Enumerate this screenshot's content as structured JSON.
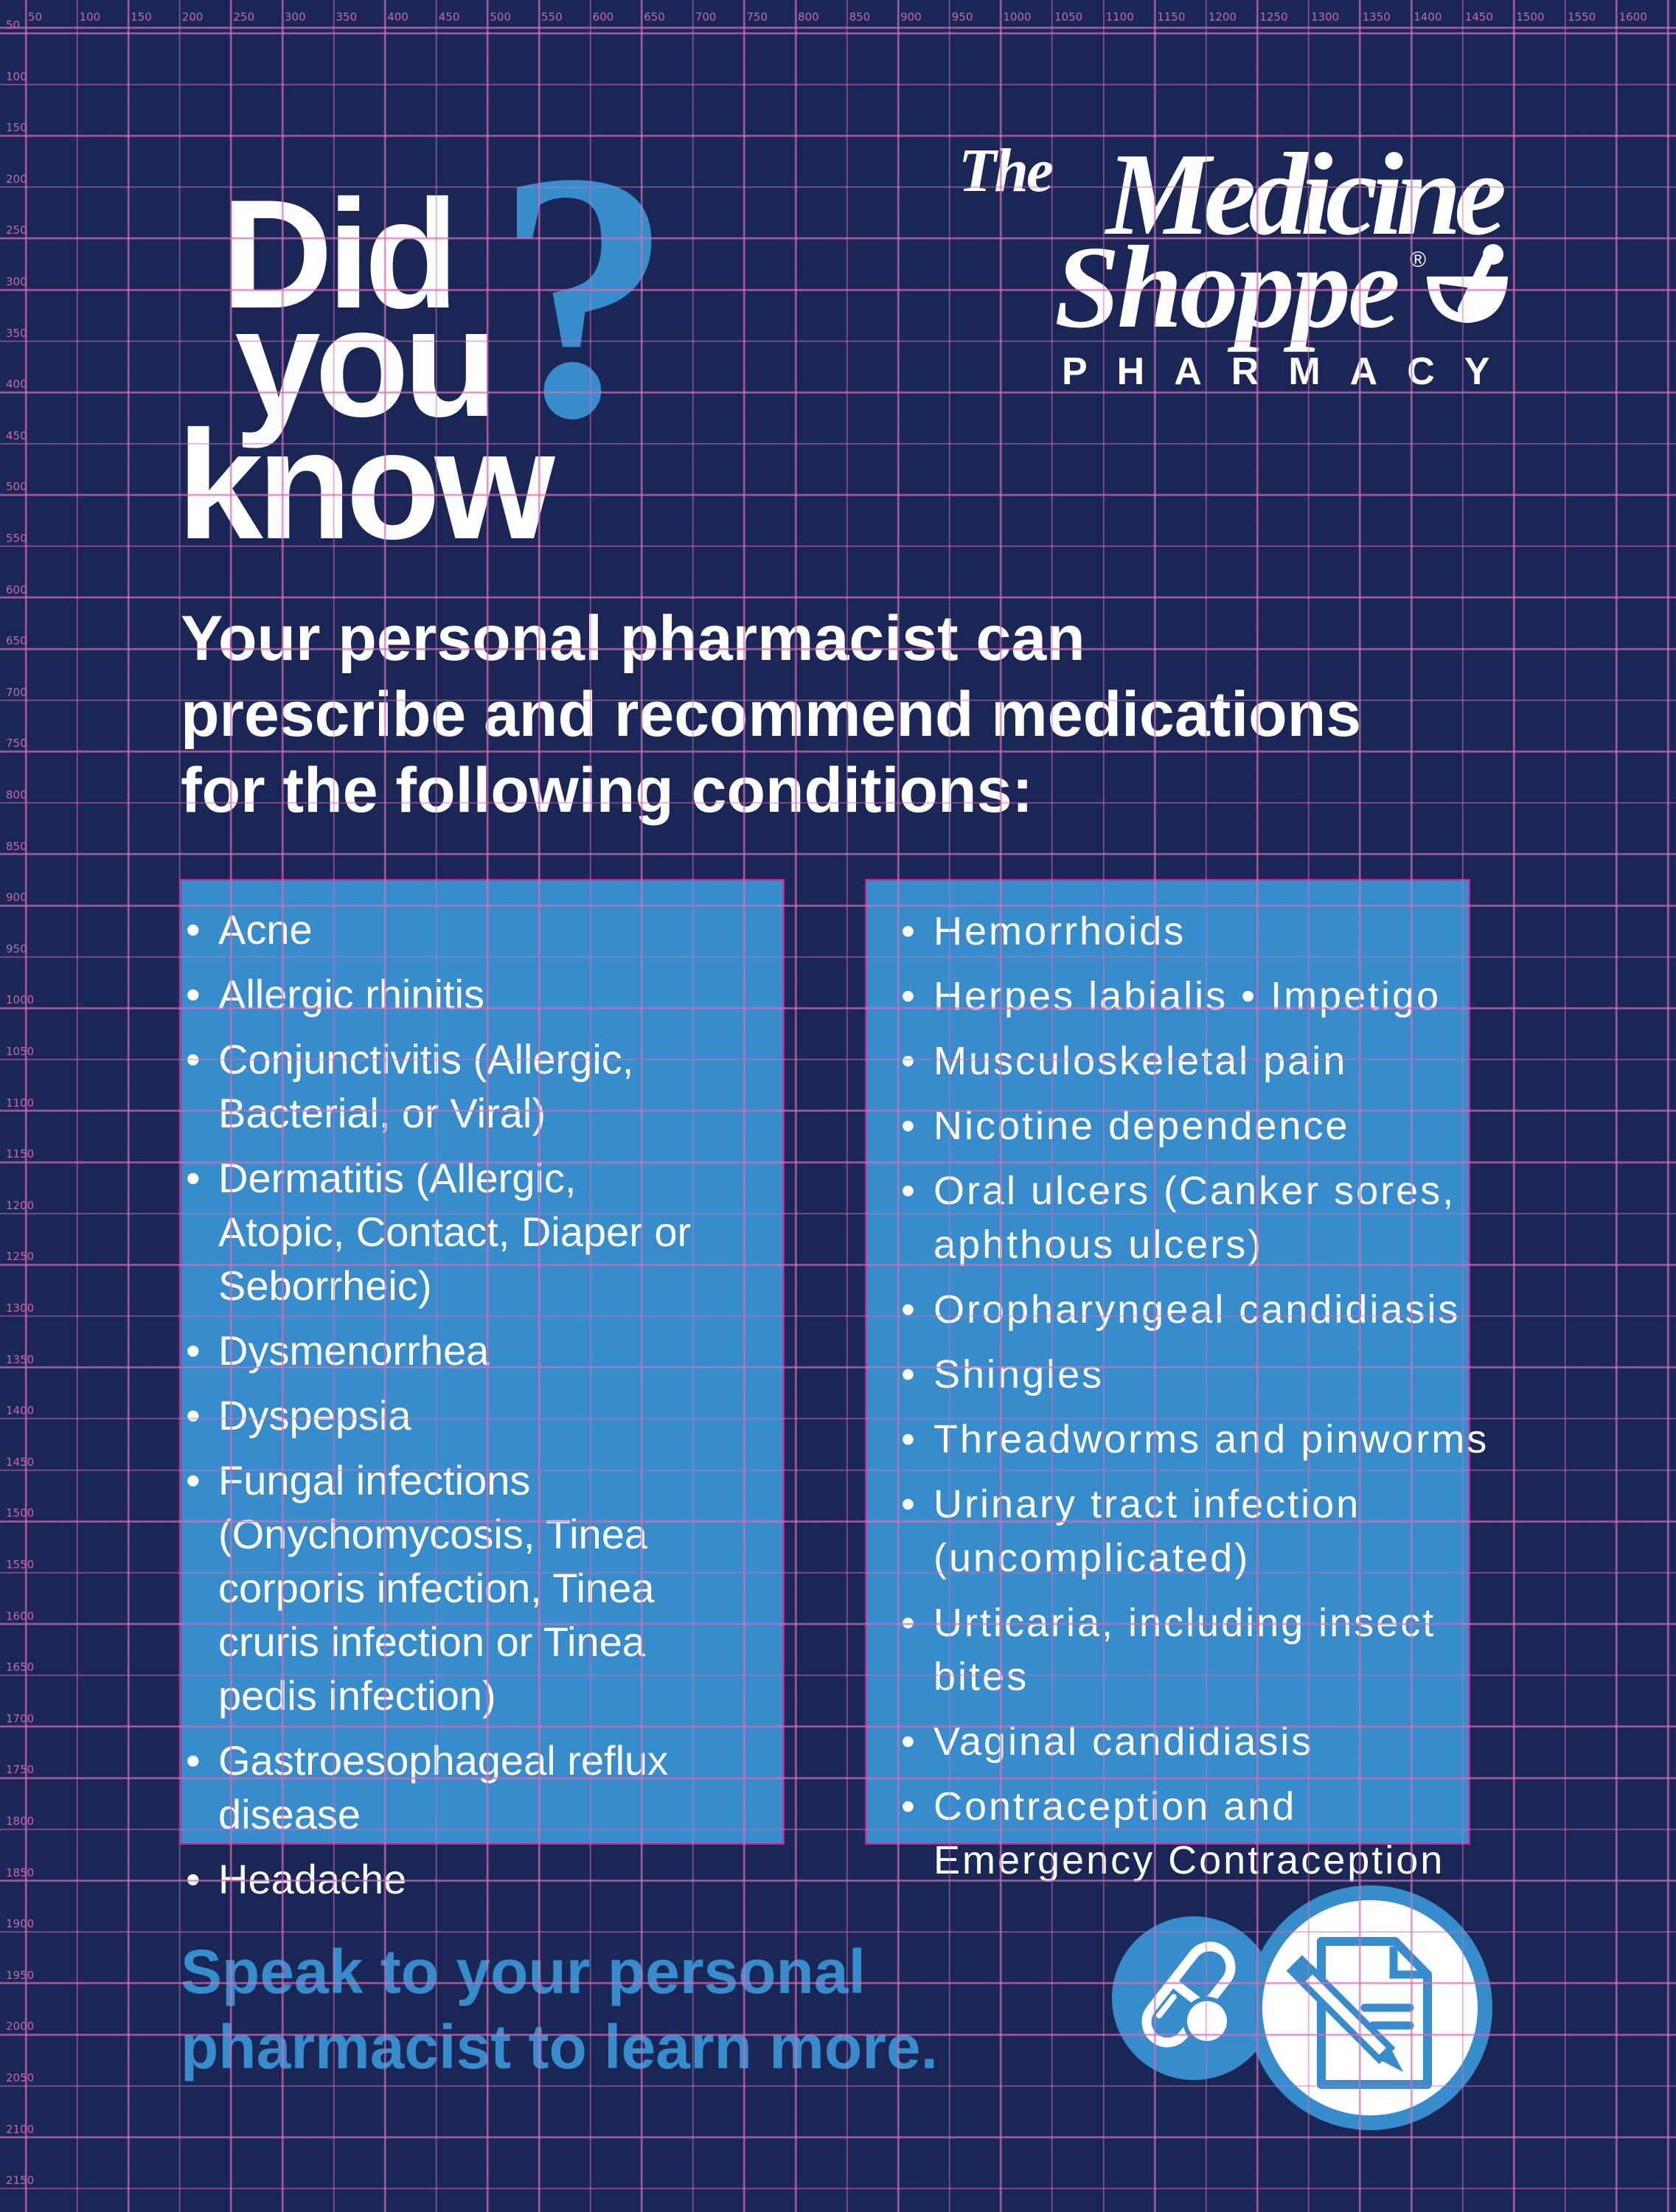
{
  "colors": {
    "background": "#1a2756",
    "accent_blue": "#378dcb",
    "box_border": "#e0128c",
    "grid": "#d66eb8",
    "text": "#ffffff"
  },
  "ruler": {
    "top": [
      "50",
      "100",
      "150",
      "200",
      "250",
      "300",
      "350",
      "400",
      "450",
      "500",
      "550",
      "600",
      "650",
      "700",
      "750",
      "800",
      "850",
      "900",
      "950",
      "1000",
      "1050",
      "1100",
      "1150",
      "1200",
      "1250",
      "1300",
      "1350",
      "1400",
      "1450",
      "1500",
      "1550",
      "1600"
    ],
    "left": [
      "50",
      "100",
      "150",
      "200",
      "250",
      "300",
      "350",
      "400",
      "450",
      "500",
      "550",
      "600",
      "650",
      "700",
      "750",
      "800",
      "850",
      "900",
      "950",
      "1000",
      "1050",
      "1100",
      "1150",
      "1200",
      "1250",
      "1300",
      "1350",
      "1400",
      "1450",
      "1500",
      "1550",
      "1600",
      "1650",
      "1700",
      "1750",
      "1800",
      "1850",
      "1900",
      "1950",
      "2000",
      "2050",
      "2100",
      "2150"
    ]
  },
  "headline": {
    "line1": "Did",
    "line2": "you",
    "line3": "know",
    "mark": "?"
  },
  "logo": {
    "the": "The",
    "medicine": "Medicine",
    "shoppe": "Shoppe",
    "registered": "®",
    "pharmacy": "PHARMACY"
  },
  "intro": [
    "Your personal pharmacist can",
    "prescribe and recommend medications",
    "for the following conditions:"
  ],
  "bullet": "•",
  "left_conditions": [
    "Acne",
    "Allergic rhinitis",
    "Conjunctivitis (Allergic,\nBacterial, or Viral)",
    "Dermatitis (Allergic,\nAtopic, Contact, Diaper or\nSeborrheic)",
    "Dysmenorrhea",
    "Dyspepsia",
    "Fungal infections\n(Onychomycosis, Tinea\ncorporis infection, Tinea\ncruris infection or Tinea\npedis infection)",
    "Gastroesophageal reflux\ndisease",
    "Headache"
  ],
  "right_conditions": [
    "Hemorrhoids",
    "Herpes labialis • Impetigo",
    "Musculoskeletal pain",
    "Nicotine dependence",
    "Oral ulcers (Canker sores,\naphthous ulcers)",
    "Oropharyngeal candidiasis",
    "Shingles",
    "Threadworms and pinworms",
    "Urinary tract infection\n(uncomplicated)",
    "Urticaria, including insect\nbites",
    "Vaginal candidiasis",
    "Contraception and\nEmergency Contraception"
  ],
  "cta": [
    "Speak to your personal",
    "pharmacist to learn more."
  ],
  "icons": {
    "pill": "pill-capsule-icon",
    "prescription": "prescription-document-pencil-icon"
  }
}
